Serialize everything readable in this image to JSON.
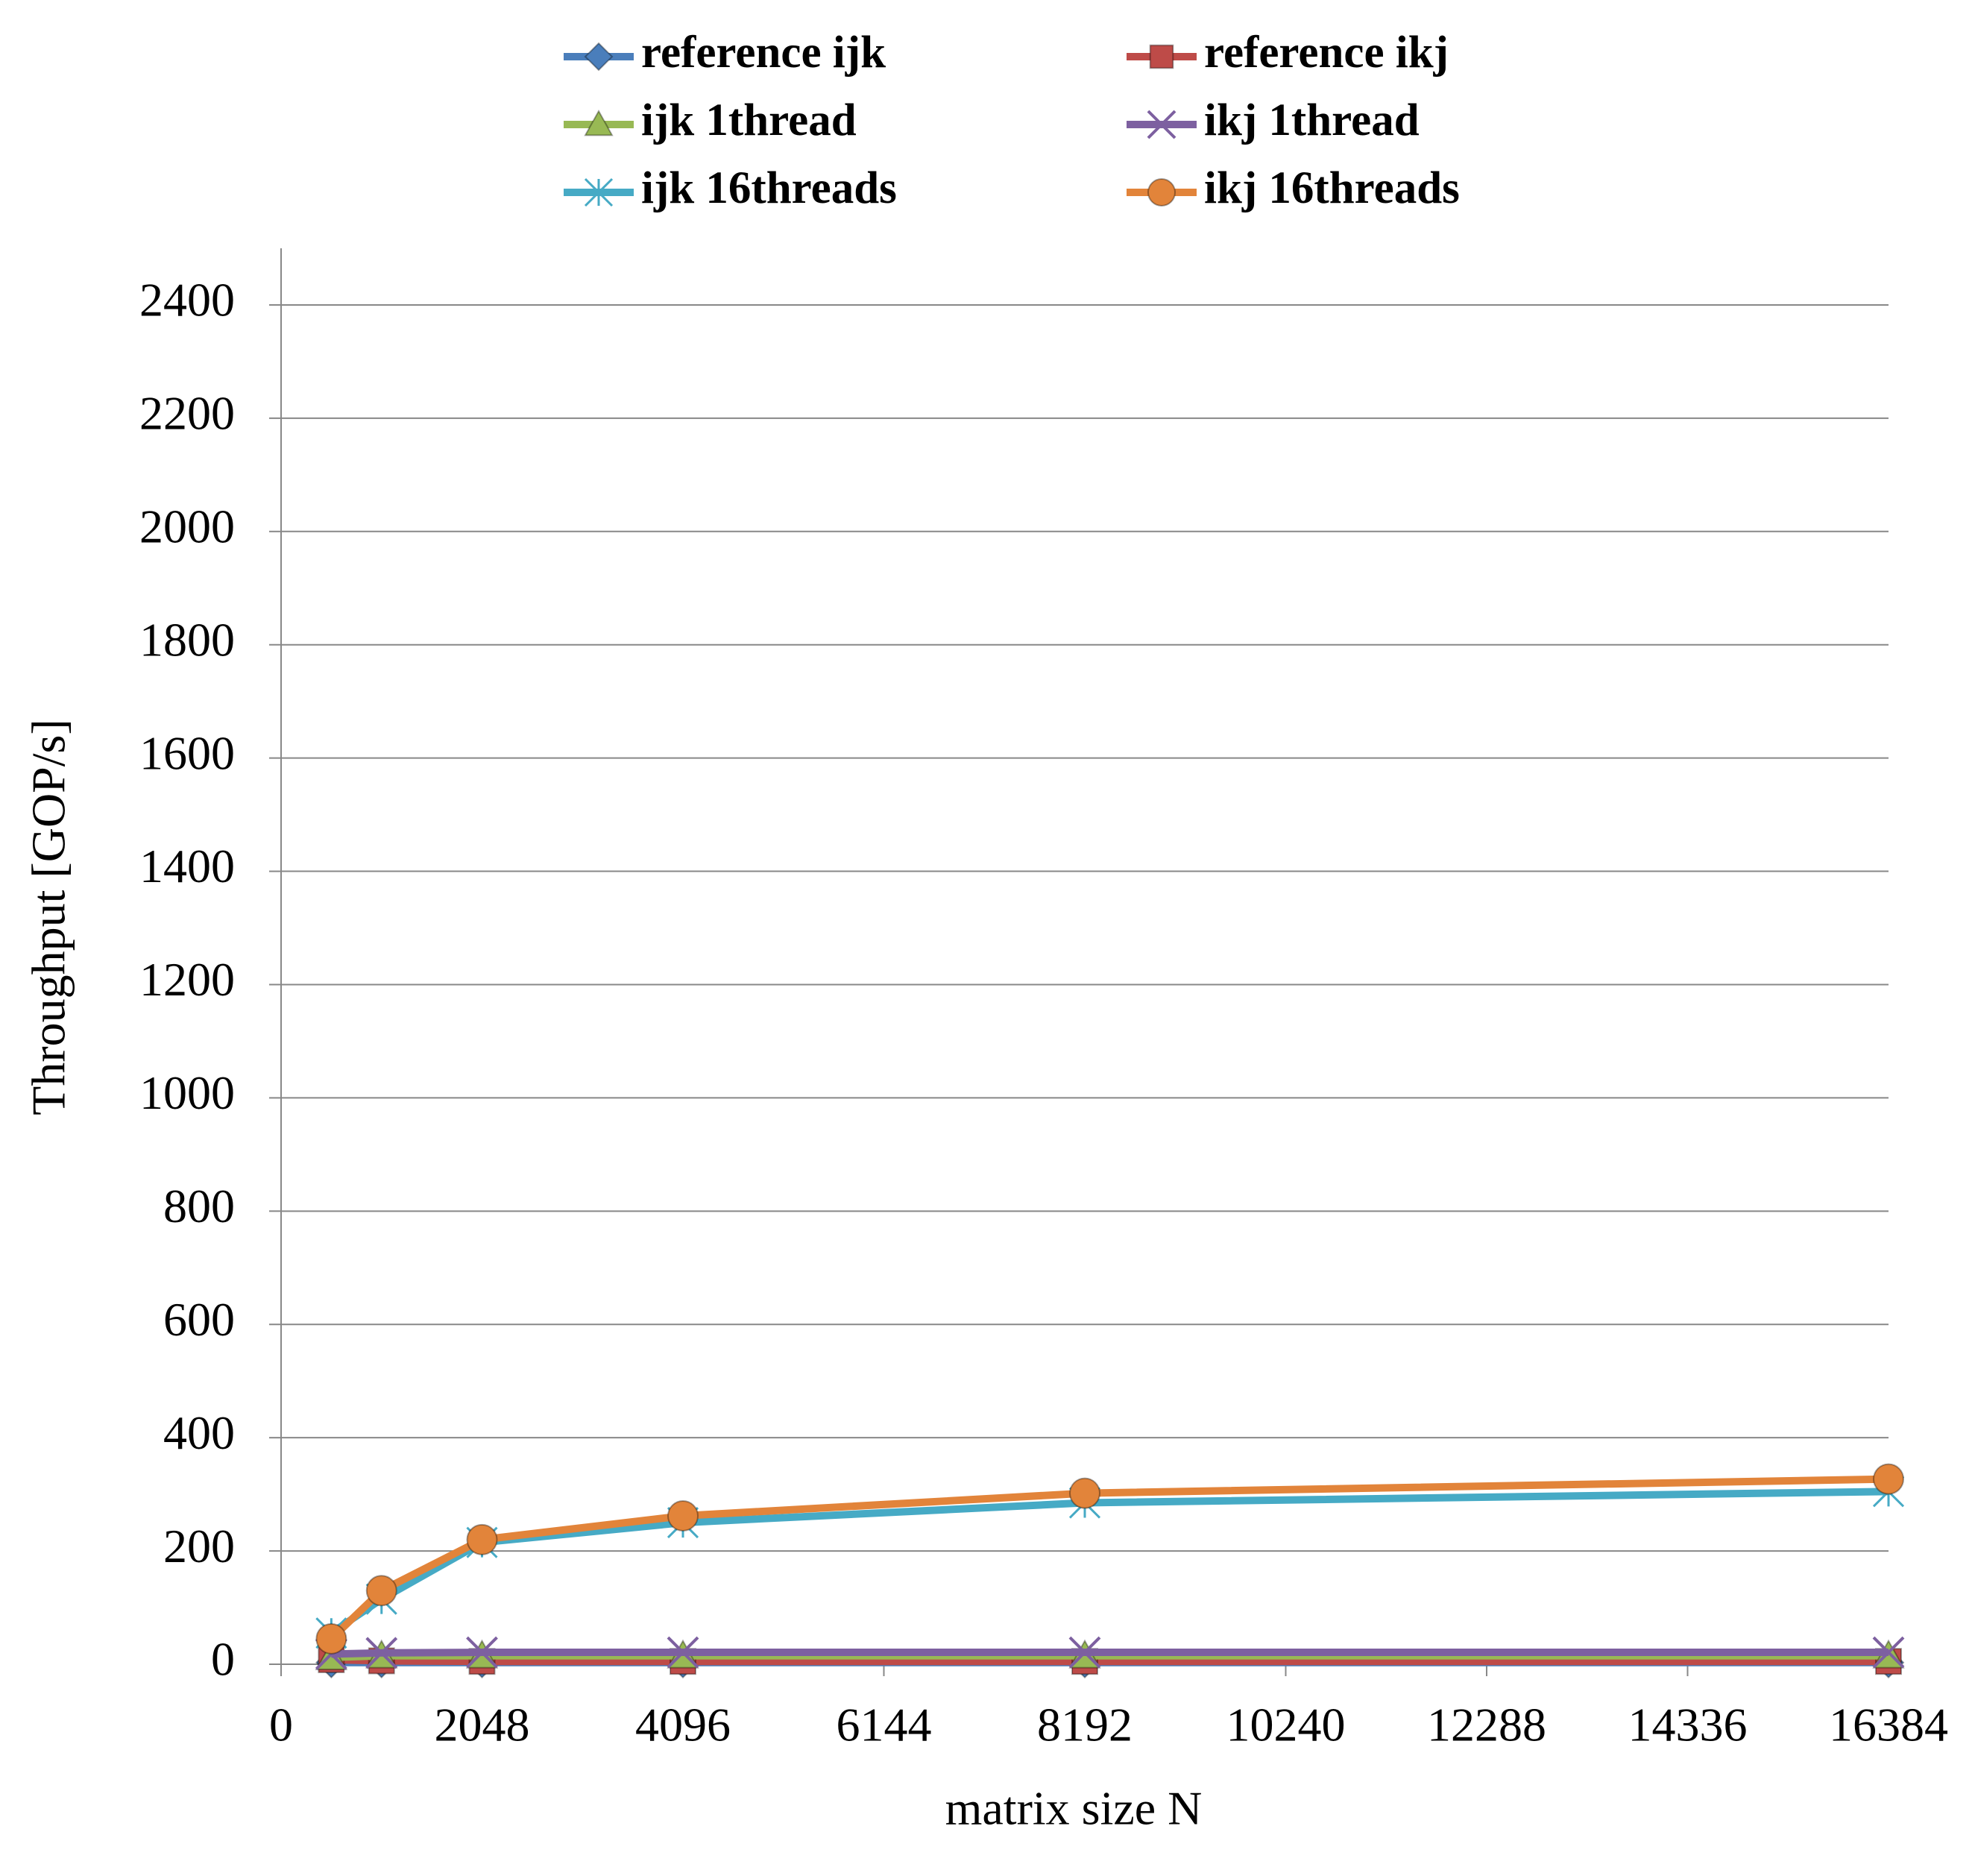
{
  "chart_data": {
    "type": "line",
    "x": [
      512,
      1024,
      2048,
      4096,
      8192,
      16384
    ],
    "series": [
      {
        "name": "reference ijk",
        "color": "#4a7ebb",
        "marker": "diamond",
        "values": [
          3,
          3,
          3,
          3,
          3,
          3
        ]
      },
      {
        "name": "reference ikj",
        "color": "#be4b48",
        "marker": "square",
        "values": [
          8,
          6,
          5,
          5,
          5,
          5
        ]
      },
      {
        "name": "ijk 1thread",
        "color": "#98b954",
        "marker": "triangle",
        "values": [
          12,
          15,
          15,
          15,
          15,
          15
        ]
      },
      {
        "name": "ikj 1thread",
        "color": "#7d60a0",
        "marker": "x",
        "values": [
          18,
          20,
          21,
          21,
          21,
          21
        ]
      },
      {
        "name": "ijk 16threads",
        "color": "#46aac5",
        "marker": "asterisk",
        "values": [
          55,
          115,
          215,
          250,
          285,
          305
        ]
      },
      {
        "name": "ikj 16threads",
        "color": "#e2843a",
        "marker": "circle",
        "values": [
          45,
          130,
          220,
          262,
          302,
          327
        ]
      }
    ],
    "xlabel": "matrix size N",
    "ylabel": "Throughput [GOP/s]",
    "xlim": [
      0,
      16384
    ],
    "xticks": [
      0,
      2048,
      4096,
      6144,
      8192,
      10240,
      12288,
      14336,
      16384
    ],
    "ylim": [
      0,
      2500
    ],
    "yticks": [
      0,
      200,
      400,
      600,
      800,
      1000,
      1200,
      1400,
      1600,
      1800,
      2000,
      2200,
      2400
    ],
    "grid": true,
    "legend": "top"
  }
}
